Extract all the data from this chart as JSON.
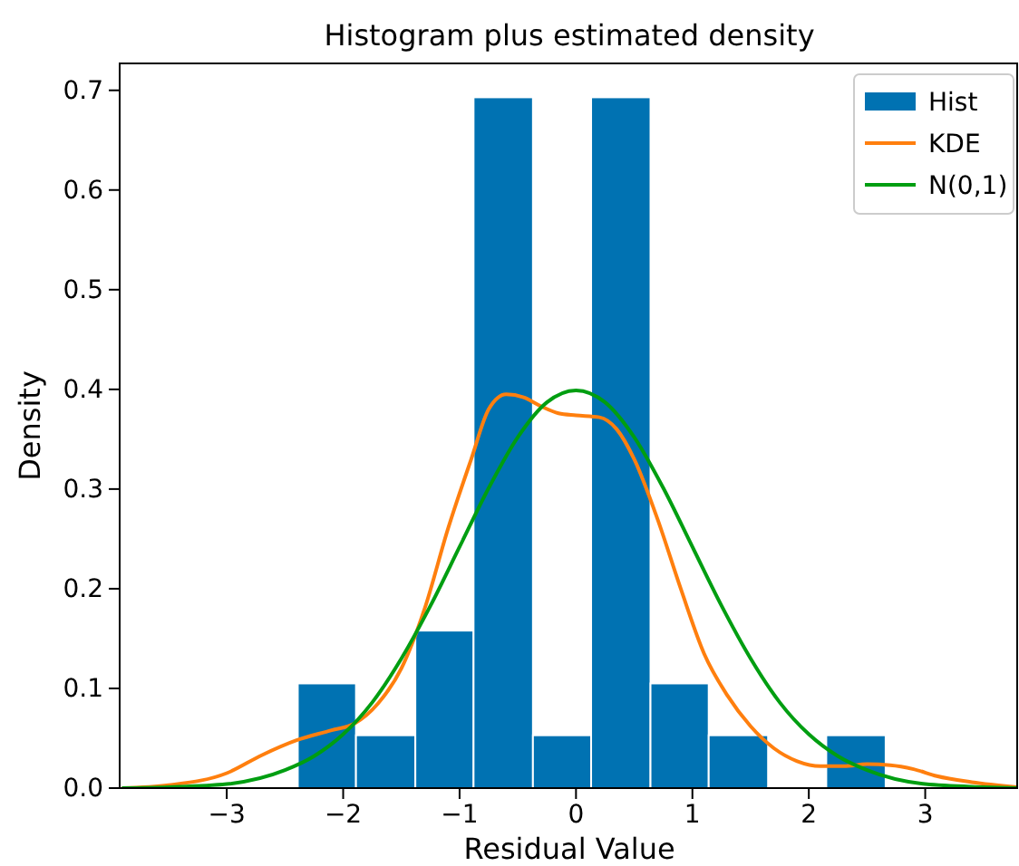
{
  "chart_data": {
    "type": "histogram",
    "title": "Histogram plus estimated density",
    "xlabel": "Residual Value",
    "ylabel": "Density",
    "bins": [
      -2.39,
      -1.89,
      -1.38,
      -0.88,
      -0.37,
      0.13,
      0.64,
      1.14,
      1.65,
      2.15,
      2.66
    ],
    "series": [
      {
        "name": "Hist",
        "color": "#0072b2",
        "values": [
          0.105,
          0.053,
          0.158,
          0.693,
          0.053,
          0.693,
          0.105,
          0.053,
          0,
          0.053
        ]
      },
      {
        "name": "KDE",
        "type": "line",
        "color": "#ff7f0e",
        "x": [
          -3.9,
          -3.5,
          -3.0,
          -2.7,
          -2.4,
          -2.1,
          -1.9,
          -1.7,
          -1.5,
          -1.3,
          -1.1,
          -0.9,
          -0.75,
          -0.6,
          -0.45,
          -0.3,
          -0.15,
          0.0,
          0.2,
          0.35,
          0.5,
          0.7,
          0.9,
          1.1,
          1.3,
          1.5,
          1.7,
          1.9,
          2.1,
          2.3,
          2.5,
          2.7,
          2.9,
          3.1,
          3.4,
          3.79
        ],
        "values": [
          0,
          0.003,
          0.015,
          0.033,
          0.048,
          0.058,
          0.065,
          0.085,
          0.12,
          0.18,
          0.26,
          0.33,
          0.38,
          0.395,
          0.392,
          0.383,
          0.376,
          0.374,
          0.372,
          0.36,
          0.33,
          0.27,
          0.2,
          0.135,
          0.093,
          0.062,
          0.04,
          0.027,
          0.022,
          0.022,
          0.024,
          0.023,
          0.019,
          0.012,
          0.006,
          0.001
        ]
      },
      {
        "name": "N(0,1)",
        "type": "line",
        "color": "#009e11",
        "x": [
          -3.9,
          -3.5,
          -3.0,
          -2.5,
          -2.25,
          -2,
          -1.75,
          -1.5,
          -1.25,
          -1,
          -0.75,
          -0.5,
          -0.25,
          0,
          0.25,
          0.5,
          0.75,
          1,
          1.25,
          1.5,
          1.75,
          2,
          2.25,
          2.5,
          3,
          3.5,
          3.79
        ],
        "values": [
          0,
          0.001,
          0.004,
          0.018,
          0.032,
          0.054,
          0.086,
          0.13,
          0.183,
          0.242,
          0.301,
          0.352,
          0.387,
          0.399,
          0.387,
          0.352,
          0.301,
          0.242,
          0.183,
          0.13,
          0.086,
          0.054,
          0.032,
          0.018,
          0.004,
          0.001,
          0
        ]
      }
    ],
    "xlim": [
      -3.92,
      3.79
    ],
    "ylim": [
      0,
      0.727
    ],
    "xticks": [
      {
        "value": -3,
        "label": "−3"
      },
      {
        "value": -2,
        "label": "−2"
      },
      {
        "value": -1,
        "label": "−1"
      },
      0,
      1,
      2,
      3
    ],
    "yticks": [
      {
        "value": 0,
        "label": "0.0"
      },
      {
        "value": 0.1,
        "label": "0.1"
      },
      {
        "value": 0.2,
        "label": "0.2"
      },
      {
        "value": 0.3,
        "label": "0.3"
      },
      {
        "value": 0.4,
        "label": "0.4"
      },
      {
        "value": 0.5,
        "label": "0.5"
      },
      {
        "value": 0.6,
        "label": "0.6"
      },
      {
        "value": 0.7,
        "label": "0.7"
      }
    ],
    "grid": false,
    "legend": "top right"
  }
}
